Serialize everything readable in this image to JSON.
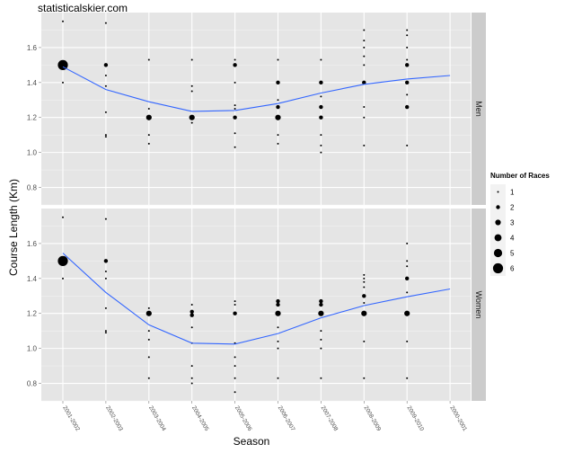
{
  "site_label": "statisticalskier.com",
  "chart_data": {
    "type": "scatter",
    "xlabel": "Season",
    "ylabel": "Course Length (Km)",
    "categories": [
      "2001-2002",
      "2002-2003",
      "2003-2004",
      "2004-2005",
      "2005-2006",
      "2006-2007",
      "2007-2008",
      "2008-2009",
      "2009-2010",
      "2000-2001"
    ],
    "ylim": [
      0.7,
      1.8
    ],
    "yticks": [
      0.8,
      1.0,
      1.2,
      1.4,
      1.6
    ],
    "ytick_labels": [
      "0.8",
      "1.0",
      "1.2",
      "1.4",
      "1.6"
    ],
    "grid": true,
    "legend": {
      "title": "Number of Races",
      "position": "right",
      "sizes": [
        1,
        2,
        3,
        4,
        5,
        6
      ],
      "labels": [
        "1",
        "2",
        "3",
        "4",
        "5",
        "6"
      ]
    },
    "panels": [
      {
        "name": "Men",
        "points": [
          {
            "x": "2001-2002",
            "y": 1.75,
            "n": 1
          },
          {
            "x": "2001-2002",
            "y": 1.5,
            "n": 6
          },
          {
            "x": "2001-2002",
            "y": 1.4,
            "n": 1
          },
          {
            "x": "2002-2003",
            "y": 1.74,
            "n": 1
          },
          {
            "x": "2002-2003",
            "y": 1.5,
            "n": 2
          },
          {
            "x": "2002-2003",
            "y": 1.44,
            "n": 1
          },
          {
            "x": "2002-2003",
            "y": 1.38,
            "n": 1
          },
          {
            "x": "2002-2003",
            "y": 1.23,
            "n": 1
          },
          {
            "x": "2002-2003",
            "y": 1.1,
            "n": 1
          },
          {
            "x": "2002-2003",
            "y": 1.09,
            "n": 1
          },
          {
            "x": "2003-2004",
            "y": 1.53,
            "n": 1
          },
          {
            "x": "2003-2004",
            "y": 1.25,
            "n": 1
          },
          {
            "x": "2003-2004",
            "y": 1.2,
            "n": 3
          },
          {
            "x": "2003-2004",
            "y": 1.1,
            "n": 1
          },
          {
            "x": "2003-2004",
            "y": 1.05,
            "n": 1
          },
          {
            "x": "2004-2005",
            "y": 1.53,
            "n": 1
          },
          {
            "x": "2004-2005",
            "y": 1.38,
            "n": 1
          },
          {
            "x": "2004-2005",
            "y": 1.35,
            "n": 1
          },
          {
            "x": "2004-2005",
            "y": 1.2,
            "n": 3
          },
          {
            "x": "2004-2005",
            "y": 1.17,
            "n": 1
          },
          {
            "x": "2005-2006",
            "y": 1.53,
            "n": 1
          },
          {
            "x": "2005-2006",
            "y": 1.5,
            "n": 2
          },
          {
            "x": "2005-2006",
            "y": 1.4,
            "n": 1
          },
          {
            "x": "2005-2006",
            "y": 1.27,
            "n": 1
          },
          {
            "x": "2005-2006",
            "y": 1.25,
            "n": 1
          },
          {
            "x": "2005-2006",
            "y": 1.2,
            "n": 2
          },
          {
            "x": "2005-2006",
            "y": 1.11,
            "n": 1
          },
          {
            "x": "2005-2006",
            "y": 1.03,
            "n": 1
          },
          {
            "x": "2006-2007",
            "y": 1.53,
            "n": 1
          },
          {
            "x": "2006-2007",
            "y": 1.4,
            "n": 2
          },
          {
            "x": "2006-2007",
            "y": 1.3,
            "n": 1
          },
          {
            "x": "2006-2007",
            "y": 1.26,
            "n": 2
          },
          {
            "x": "2006-2007",
            "y": 1.2,
            "n": 3
          },
          {
            "x": "2006-2007",
            "y": 1.1,
            "n": 1
          },
          {
            "x": "2006-2007",
            "y": 1.05,
            "n": 1
          },
          {
            "x": "2007-2008",
            "y": 1.53,
            "n": 1
          },
          {
            "x": "2007-2008",
            "y": 1.4,
            "n": 2
          },
          {
            "x": "2007-2008",
            "y": 1.32,
            "n": 1
          },
          {
            "x": "2007-2008",
            "y": 1.26,
            "n": 2
          },
          {
            "x": "2007-2008",
            "y": 1.2,
            "n": 2
          },
          {
            "x": "2007-2008",
            "y": 1.1,
            "n": 1
          },
          {
            "x": "2007-2008",
            "y": 1.04,
            "n": 1
          },
          {
            "x": "2007-2008",
            "y": 1.0,
            "n": 1
          },
          {
            "x": "2008-2009",
            "y": 1.7,
            "n": 1
          },
          {
            "x": "2008-2009",
            "y": 1.64,
            "n": 1
          },
          {
            "x": "2008-2009",
            "y": 1.6,
            "n": 1
          },
          {
            "x": "2008-2009",
            "y": 1.55,
            "n": 1
          },
          {
            "x": "2008-2009",
            "y": 1.5,
            "n": 1
          },
          {
            "x": "2008-2009",
            "y": 1.4,
            "n": 2
          },
          {
            "x": "2008-2009",
            "y": 1.26,
            "n": 1
          },
          {
            "x": "2008-2009",
            "y": 1.2,
            "n": 1
          },
          {
            "x": "2008-2009",
            "y": 1.04,
            "n": 1
          },
          {
            "x": "2009-2010",
            "y": 1.7,
            "n": 1
          },
          {
            "x": "2009-2010",
            "y": 1.67,
            "n": 1
          },
          {
            "x": "2009-2010",
            "y": 1.6,
            "n": 1
          },
          {
            "x": "2009-2010",
            "y": 1.53,
            "n": 1
          },
          {
            "x": "2009-2010",
            "y": 1.5,
            "n": 2
          },
          {
            "x": "2009-2010",
            "y": 1.4,
            "n": 2
          },
          {
            "x": "2009-2010",
            "y": 1.33,
            "n": 1
          },
          {
            "x": "2009-2010",
            "y": 1.26,
            "n": 2
          },
          {
            "x": "2009-2010",
            "y": 1.04,
            "n": 1
          }
        ],
        "smooth": [
          {
            "x": "2001-2002",
            "y": 1.49
          },
          {
            "x": "2002-2003",
            "y": 1.36
          },
          {
            "x": "2003-2004",
            "y": 1.29
          },
          {
            "x": "2004-2005",
            "y": 1.235
          },
          {
            "x": "2005-2006",
            "y": 1.24
          },
          {
            "x": "2006-2007",
            "y": 1.28
          },
          {
            "x": "2007-2008",
            "y": 1.34
          },
          {
            "x": "2008-2009",
            "y": 1.39
          },
          {
            "x": "2009-2010",
            "y": 1.42
          },
          {
            "x": "2000-2001",
            "y": 1.44
          }
        ]
      },
      {
        "name": "Women",
        "points": [
          {
            "x": "2001-2002",
            "y": 1.75,
            "n": 1
          },
          {
            "x": "2001-2002",
            "y": 1.5,
            "n": 6
          },
          {
            "x": "2001-2002",
            "y": 1.4,
            "n": 1
          },
          {
            "x": "2002-2003",
            "y": 1.74,
            "n": 1
          },
          {
            "x": "2002-2003",
            "y": 1.5,
            "n": 2
          },
          {
            "x": "2002-2003",
            "y": 1.44,
            "n": 1
          },
          {
            "x": "2002-2003",
            "y": 1.4,
            "n": 1
          },
          {
            "x": "2002-2003",
            "y": 1.23,
            "n": 1
          },
          {
            "x": "2002-2003",
            "y": 1.1,
            "n": 1
          },
          {
            "x": "2002-2003",
            "y": 1.09,
            "n": 1
          },
          {
            "x": "2003-2004",
            "y": 1.23,
            "n": 1
          },
          {
            "x": "2003-2004",
            "y": 1.2,
            "n": 3
          },
          {
            "x": "2003-2004",
            "y": 1.1,
            "n": 1
          },
          {
            "x": "2003-2004",
            "y": 1.05,
            "n": 1
          },
          {
            "x": "2003-2004",
            "y": 0.95,
            "n": 1
          },
          {
            "x": "2003-2004",
            "y": 0.83,
            "n": 1
          },
          {
            "x": "2004-2005",
            "y": 1.25,
            "n": 1
          },
          {
            "x": "2004-2005",
            "y": 1.21,
            "n": 2
          },
          {
            "x": "2004-2005",
            "y": 1.19,
            "n": 2
          },
          {
            "x": "2004-2005",
            "y": 1.12,
            "n": 1
          },
          {
            "x": "2004-2005",
            "y": 1.03,
            "n": 1
          },
          {
            "x": "2004-2005",
            "y": 0.9,
            "n": 1
          },
          {
            "x": "2004-2005",
            "y": 0.83,
            "n": 1
          },
          {
            "x": "2004-2005",
            "y": 0.8,
            "n": 1
          },
          {
            "x": "2005-2006",
            "y": 1.27,
            "n": 1
          },
          {
            "x": "2005-2006",
            "y": 1.25,
            "n": 1
          },
          {
            "x": "2005-2006",
            "y": 1.2,
            "n": 2
          },
          {
            "x": "2005-2006",
            "y": 1.03,
            "n": 1
          },
          {
            "x": "2005-2006",
            "y": 0.95,
            "n": 1
          },
          {
            "x": "2005-2006",
            "y": 0.9,
            "n": 1
          },
          {
            "x": "2005-2006",
            "y": 0.83,
            "n": 1
          },
          {
            "x": "2005-2006",
            "y": 0.75,
            "n": 1
          },
          {
            "x": "2006-2007",
            "y": 1.27,
            "n": 2
          },
          {
            "x": "2006-2007",
            "y": 1.25,
            "n": 2
          },
          {
            "x": "2006-2007",
            "y": 1.2,
            "n": 3
          },
          {
            "x": "2006-2007",
            "y": 1.12,
            "n": 1
          },
          {
            "x": "2006-2007",
            "y": 1.04,
            "n": 1
          },
          {
            "x": "2006-2007",
            "y": 1.0,
            "n": 1
          },
          {
            "x": "2006-2007",
            "y": 0.83,
            "n": 1
          },
          {
            "x": "2007-2008",
            "y": 1.27,
            "n": 2
          },
          {
            "x": "2007-2008",
            "y": 1.25,
            "n": 2
          },
          {
            "x": "2007-2008",
            "y": 1.2,
            "n": 3
          },
          {
            "x": "2007-2008",
            "y": 1.1,
            "n": 1
          },
          {
            "x": "2007-2008",
            "y": 1.05,
            "n": 1
          },
          {
            "x": "2007-2008",
            "y": 1.0,
            "n": 1
          },
          {
            "x": "2007-2008",
            "y": 0.83,
            "n": 1
          },
          {
            "x": "2008-2009",
            "y": 1.42,
            "n": 1
          },
          {
            "x": "2008-2009",
            "y": 1.4,
            "n": 1
          },
          {
            "x": "2008-2009",
            "y": 1.38,
            "n": 1
          },
          {
            "x": "2008-2009",
            "y": 1.35,
            "n": 1
          },
          {
            "x": "2008-2009",
            "y": 1.3,
            "n": 2
          },
          {
            "x": "2008-2009",
            "y": 1.26,
            "n": 1
          },
          {
            "x": "2008-2009",
            "y": 1.2,
            "n": 3
          },
          {
            "x": "2008-2009",
            "y": 1.04,
            "n": 1
          },
          {
            "x": "2008-2009",
            "y": 0.83,
            "n": 1
          },
          {
            "x": "2009-2010",
            "y": 1.6,
            "n": 1
          },
          {
            "x": "2009-2010",
            "y": 1.5,
            "n": 1
          },
          {
            "x": "2009-2010",
            "y": 1.47,
            "n": 1
          },
          {
            "x": "2009-2010",
            "y": 1.4,
            "n": 2
          },
          {
            "x": "2009-2010",
            "y": 1.32,
            "n": 1
          },
          {
            "x": "2009-2010",
            "y": 1.2,
            "n": 3
          },
          {
            "x": "2009-2010",
            "y": 1.04,
            "n": 1
          },
          {
            "x": "2009-2010",
            "y": 0.83,
            "n": 1
          }
        ],
        "smooth": [
          {
            "x": "2001-2002",
            "y": 1.545
          },
          {
            "x": "2002-2003",
            "y": 1.32
          },
          {
            "x": "2003-2004",
            "y": 1.135
          },
          {
            "x": "2004-2005",
            "y": 1.03
          },
          {
            "x": "2005-2006",
            "y": 1.025
          },
          {
            "x": "2006-2007",
            "y": 1.085
          },
          {
            "x": "2007-2008",
            "y": 1.175
          },
          {
            "x": "2008-2009",
            "y": 1.245
          },
          {
            "x": "2009-2010",
            "y": 1.295
          },
          {
            "x": "2000-2001",
            "y": 1.34
          }
        ]
      }
    ],
    "colors": {
      "panel_bg": "#e5e5e5",
      "grid_major": "#ffffff",
      "grid_minor": "#f2f2f2",
      "strip_bg": "#cccccc",
      "point": "#000000",
      "smooth_line": "#3366ff",
      "tick_text": "#4d4d4d"
    }
  }
}
